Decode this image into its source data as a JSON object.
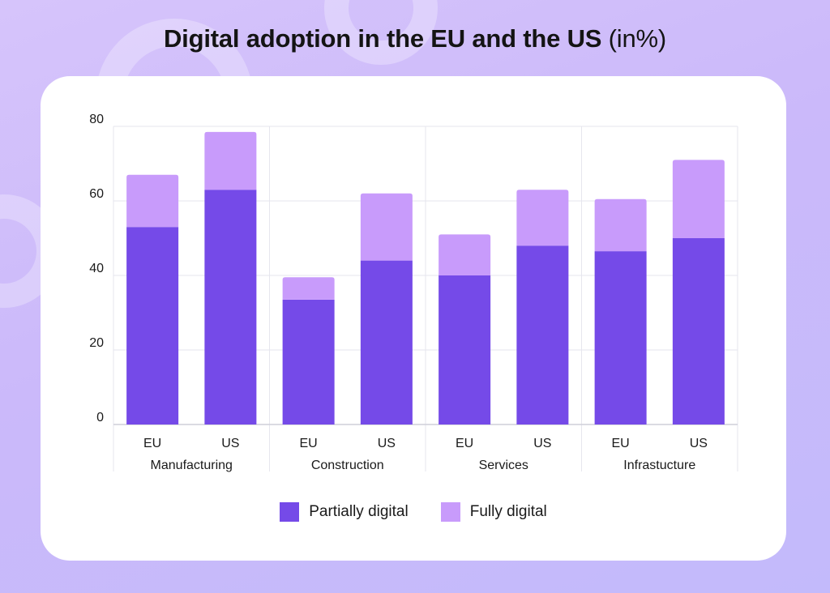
{
  "title": {
    "main": "Digital adoption in the EU and the US",
    "sub": "(in%)"
  },
  "colors": {
    "partial": "#754ae8",
    "full": "#c89bfb",
    "grid": "#e6e6ee",
    "axis": "#cfcfd8",
    "text": "#1a1a1a"
  },
  "chart_data": {
    "type": "bar",
    "stacked": true,
    "title": "Digital adoption in the EU and the US (in%)",
    "xlabel": "",
    "ylabel": "",
    "ylim": [
      0,
      80
    ],
    "yticks": [
      0,
      20,
      40,
      60,
      80
    ],
    "grid": true,
    "legend_position": "bottom",
    "groups": [
      {
        "name": "Manufacturing",
        "categories": [
          "EU",
          "US"
        ]
      },
      {
        "name": "Construction",
        "categories": [
          "EU",
          "US"
        ]
      },
      {
        "name": "Services",
        "categories": [
          "EU",
          "US"
        ]
      },
      {
        "name": "Infrastucture",
        "categories": [
          "EU",
          "US"
        ]
      }
    ],
    "series": [
      {
        "name": "Partially digital",
        "values": [
          53,
          63,
          33.5,
          44,
          40,
          48,
          46.5,
          50
        ]
      },
      {
        "name": "Fully digital",
        "values": [
          14,
          15.5,
          6,
          18,
          11,
          15,
          14,
          21
        ]
      }
    ]
  }
}
